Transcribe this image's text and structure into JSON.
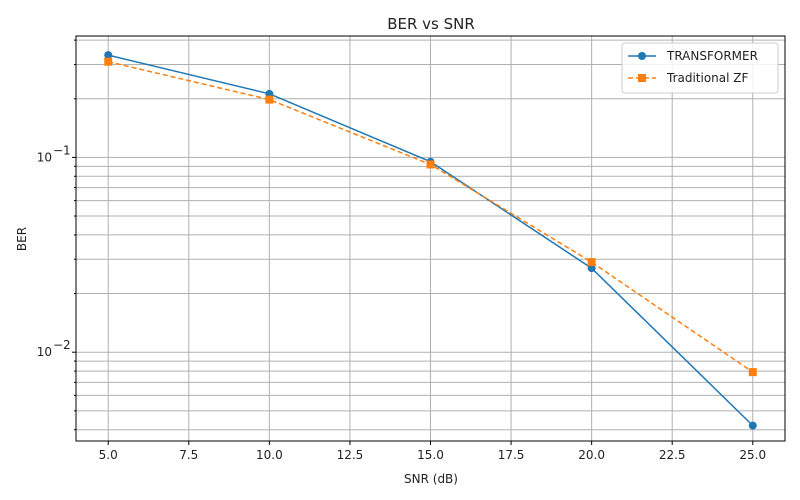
{
  "chart_data": {
    "type": "line",
    "title": "BER vs SNR",
    "xlabel": "SNR (dB)",
    "ylabel": "BER",
    "y_scale": "log",
    "grid": true,
    "grid_minor_y": true,
    "legend_position": "top-right",
    "xlim": [
      4.0,
      26.0
    ],
    "ylim": [
      0.0035,
      0.42
    ],
    "x_ticks": [
      5.0,
      7.5,
      10.0,
      12.5,
      15.0,
      17.5,
      20.0,
      22.5,
      25.0
    ],
    "x_tick_labels": [
      "5.0",
      "7.5",
      "10.0",
      "12.5",
      "15.0",
      "17.5",
      "20.0",
      "22.5",
      "25.0"
    ],
    "y_major_ticks": [
      0.01,
      0.1
    ],
    "y_major_labels": [
      "10",
      "10"
    ],
    "y_major_exponents": [
      "−2",
      "−1"
    ],
    "x": [
      5,
      10,
      15,
      20,
      25
    ],
    "series": [
      {
        "name": "TRANSFORMER",
        "values": [
          0.335,
          0.212,
          0.095,
          0.027,
          0.0042
        ],
        "color": "#1f77b4",
        "marker": "circle",
        "line_style": "solid"
      },
      {
        "name": "Traditional ZF",
        "values": [
          0.31,
          0.198,
          0.092,
          0.029,
          0.0079
        ],
        "color": "#ff7f0e",
        "marker": "square",
        "line_style": "dashed"
      }
    ]
  }
}
